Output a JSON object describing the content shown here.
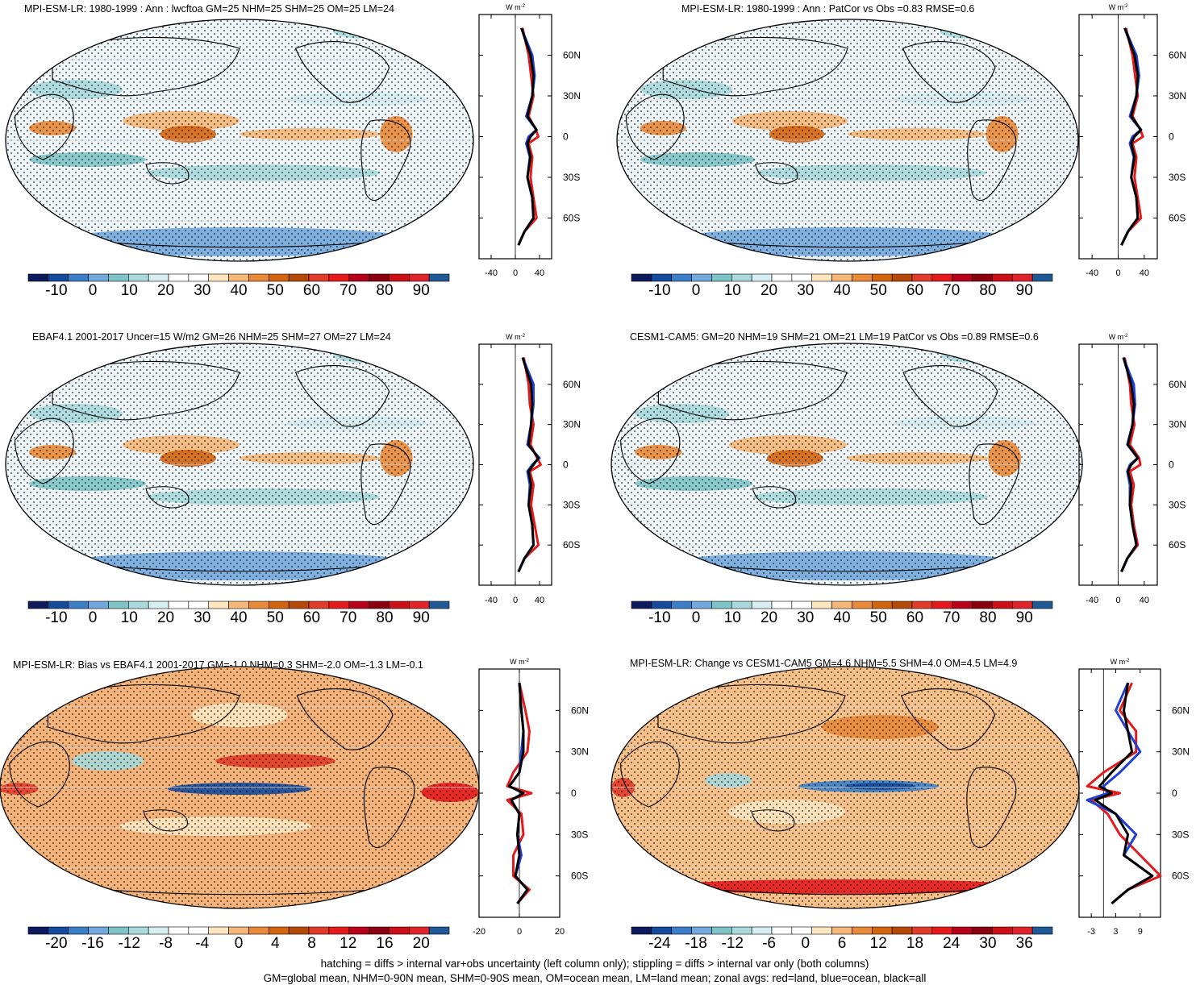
{
  "footer": {
    "line1": "hatching = diffs > internal var+obs uncertainty (left column only); stippling = diffs > internal var only (both columns)",
    "line2": "GM=global mean, NHM=0-90N mean, SHM=0-90S mean, OM=ocean mean, LM=land mean; zonal avgs: red=land, blue=ocean, black=all"
  },
  "colors": {
    "land": "#e41a1c",
    "ocean": "#1f3fd6",
    "all": "#000000",
    "palette": [
      "#0d1a5c",
      "#154a9c",
      "#3b7fc8",
      "#73a8dc",
      "#7ec4c6",
      "#a9d9dc",
      "#d6eef2",
      "#ffffff",
      "#ffffff",
      "#fde5c0",
      "#f5b87a",
      "#e88a38",
      "#d3650f",
      "#b54a08",
      "#e23b2a",
      "#e41a1c",
      "#b8001a",
      "#8a0010",
      "#cc1018",
      "#e0242c",
      "#1f5a96"
    ]
  },
  "panels": [
    {
      "title": "MPI-ESM-LR: 1980-1999 : Ann : lwcftoa GM=25 NHM=25 SHM=25 OM=25 LM=24",
      "colorbar_labels": [
        "-10",
        "0",
        "10",
        "20",
        "30",
        "40",
        "50",
        "60",
        "70",
        "80",
        "90"
      ],
      "zonal_unit": "W m",
      "zonal_unit_exp": "-2",
      "zonal_xticks": [
        "-40",
        "0",
        "40"
      ]
    },
    {
      "title": "MPI-ESM-LR: 1980-1999 : Ann : PatCor vs Obs =0.83 RMSE=0.6",
      "colorbar_labels": [
        "-10",
        "0",
        "10",
        "20",
        "30",
        "40",
        "50",
        "60",
        "70",
        "80",
        "90"
      ],
      "zonal_unit": "W m",
      "zonal_unit_exp": "-2",
      "zonal_xticks": [
        "-40",
        "0",
        "40"
      ]
    },
    {
      "title": "EBAF4.1 2001-2017 Uncer=15 W/m2 GM=26 NHM=25 SHM=27 OM=27 LM=24",
      "colorbar_labels": [
        "-10",
        "0",
        "10",
        "20",
        "30",
        "40",
        "50",
        "60",
        "70",
        "80",
        "90"
      ],
      "zonal_unit": "W m",
      "zonal_unit_exp": "-2",
      "zonal_xticks": [
        "-40",
        "0",
        "40"
      ]
    },
    {
      "title": "CESM1-CAM5: GM=20 NHM=19 SHM=21 OM=21 LM=19 PatCor vs Obs =0.89 RMSE=0.6",
      "colorbar_labels": [
        "-10",
        "0",
        "10",
        "20",
        "30",
        "40",
        "50",
        "60",
        "70",
        "80",
        "90"
      ],
      "zonal_unit": "W m",
      "zonal_unit_exp": "-2",
      "zonal_xticks": [
        "-40",
        "0",
        "40"
      ]
    },
    {
      "title": "MPI-ESM-LR: Bias vs EBAF4.1 2001-2017 GM=-1.0 NHM=0.3 SHM=-2.0 OM=-1.3 LM=-0.1",
      "colorbar_labels": [
        "-20",
        "-16",
        "-12",
        "-8",
        "-4",
        "0",
        "4",
        "8",
        "12",
        "16",
        "20"
      ],
      "zonal_unit": "W m",
      "zonal_unit_exp": "-2",
      "zonal_xticks": [
        "-20",
        "0",
        "20"
      ]
    },
    {
      "title": "MPI-ESM-LR: Change vs CESM1-CAM5 GM=4.6 NHM=5.5 SHM=4.0 OM=4.5 LM=4.9",
      "colorbar_labels": [
        "-24",
        "-18",
        "-12",
        "-6",
        "0",
        "6",
        "12",
        "18",
        "24",
        "30",
        "36"
      ],
      "zonal_unit": "W m",
      "zonal_unit_exp": "-2",
      "zonal_xticks": [
        "-3",
        "3",
        "9"
      ]
    }
  ],
  "chart_data": [
    {
      "type": "heatmap",
      "title": "MPI-ESM-LR: 1980-1999 : Ann : lwcftoa GM=25 NHM=25 SHM=25 OM=25 LM=24",
      "colorbar": {
        "min": -15,
        "max": 95,
        "labels": [
          -10,
          0,
          10,
          20,
          30,
          40,
          50,
          60,
          70,
          80,
          90
        ]
      },
      "zonal_mean": {
        "xlim": [
          -60,
          60
        ],
        "xticks": [
          -40,
          0,
          40
        ],
        "ylim": [
          -90,
          90
        ],
        "yticks": [
          "60N",
          "30N",
          "0",
          "30S",
          "60S"
        ],
        "lat": [
          80,
          60,
          45,
          30,
          15,
          5,
          0,
          -5,
          -15,
          -30,
          -45,
          -60,
          -70,
          -80
        ],
        "all": [
          10,
          25,
          30,
          28,
          20,
          35,
          25,
          20,
          25,
          20,
          28,
          30,
          15,
          5
        ],
        "land": [
          12,
          22,
          26,
          30,
          22,
          34,
          38,
          22,
          28,
          25,
          30,
          35,
          15,
          5
        ],
        "ocean": [
          10,
          28,
          32,
          28,
          18,
          35,
          22,
          18,
          24,
          20,
          28,
          30,
          15,
          5
        ]
      }
    },
    {
      "type": "heatmap",
      "title": "MPI-ESM-LR: 1980-1999 : Ann : PatCor vs Obs =0.83 RMSE=0.6",
      "colorbar": {
        "min": -15,
        "max": 95,
        "labels": [
          -10,
          0,
          10,
          20,
          30,
          40,
          50,
          60,
          70,
          80,
          90
        ]
      },
      "zonal_mean": {
        "xlim": [
          -60,
          60
        ],
        "xticks": [
          -40,
          0,
          40
        ],
        "ylim": [
          -90,
          90
        ],
        "yticks": [
          "60N",
          "30N",
          "0",
          "30S",
          "60S"
        ],
        "lat": [
          80,
          60,
          45,
          30,
          15,
          5,
          0,
          -5,
          -15,
          -30,
          -45,
          -60,
          -70,
          -80
        ],
        "all": [
          10,
          25,
          30,
          28,
          20,
          35,
          25,
          20,
          25,
          20,
          28,
          30,
          15,
          5
        ],
        "land": [
          12,
          22,
          26,
          30,
          22,
          34,
          38,
          22,
          28,
          25,
          30,
          35,
          15,
          5
        ],
        "ocean": [
          10,
          28,
          32,
          28,
          18,
          35,
          22,
          18,
          24,
          20,
          28,
          30,
          15,
          5
        ]
      }
    },
    {
      "type": "heatmap",
      "title": "EBAF4.1 2001-2017 Uncer=15 W/m2 GM=26 NHM=25 SHM=27 OM=27 LM=24",
      "colorbar": {
        "min": -15,
        "max": 95,
        "labels": [
          -10,
          0,
          10,
          20,
          30,
          40,
          50,
          60,
          70,
          80,
          90
        ]
      },
      "zonal_mean": {
        "xlim": [
          -60,
          60
        ],
        "xticks": [
          -40,
          0,
          40
        ],
        "ylim": [
          -90,
          90
        ],
        "yticks": [
          "60N",
          "30N",
          "0",
          "30S",
          "60S"
        ],
        "lat": [
          80,
          60,
          45,
          30,
          15,
          5,
          0,
          -5,
          -15,
          -30,
          -45,
          -60,
          -70,
          -80
        ],
        "all": [
          12,
          26,
          28,
          26,
          22,
          38,
          30,
          22,
          26,
          22,
          28,
          30,
          15,
          5
        ],
        "land": [
          14,
          22,
          24,
          30,
          25,
          36,
          42,
          24,
          30,
          26,
          32,
          38,
          15,
          5
        ],
        "ocean": [
          12,
          30,
          30,
          26,
          20,
          40,
          28,
          20,
          24,
          22,
          28,
          30,
          15,
          5
        ]
      }
    },
    {
      "type": "heatmap",
      "title": "CESM1-CAM5: GM=20 NHM=19 SHM=21 OM=21 LM=19 PatCor vs Obs =0.89 RMSE=0.6",
      "colorbar": {
        "min": -15,
        "max": 95,
        "labels": [
          -10,
          0,
          10,
          20,
          30,
          40,
          50,
          60,
          70,
          80,
          90
        ]
      },
      "zonal_mean": {
        "xlim": [
          -60,
          60
        ],
        "xticks": [
          -40,
          0,
          40
        ],
        "ylim": [
          -90,
          90
        ],
        "yticks": [
          "60N",
          "30N",
          "0",
          "30S",
          "60S"
        ],
        "lat": [
          80,
          60,
          45,
          30,
          15,
          5,
          0,
          -5,
          -15,
          -30,
          -45,
          -60,
          -70,
          -80
        ],
        "all": [
          8,
          20,
          24,
          22,
          15,
          30,
          20,
          15,
          20,
          18,
          22,
          28,
          14,
          5
        ],
        "land": [
          10,
          18,
          20,
          25,
          18,
          32,
          34,
          18,
          24,
          20,
          24,
          30,
          14,
          5
        ],
        "ocean": [
          8,
          24,
          26,
          22,
          14,
          30,
          18,
          14,
          18,
          18,
          22,
          28,
          14,
          5
        ]
      }
    },
    {
      "type": "heatmap",
      "title": "MPI-ESM-LR: Bias vs EBAF4.1 2001-2017 GM=-1.0 NHM=0.3 SHM=-2.0 OM=-1.3 LM=-0.1",
      "colorbar": {
        "min": -22,
        "max": 22,
        "labels": [
          -20,
          -16,
          -12,
          -8,
          -4,
          0,
          4,
          8,
          12,
          16,
          20
        ]
      },
      "zonal_mean": {
        "xlim": [
          -20,
          20
        ],
        "xticks": [
          -20,
          0,
          20
        ],
        "ylim": [
          -90,
          90
        ],
        "yticks": [
          "60N",
          "30N",
          "0",
          "30S",
          "60S"
        ],
        "lat": [
          80,
          60,
          45,
          30,
          15,
          5,
          0,
          -5,
          -15,
          -30,
          -45,
          -60,
          -70,
          -80
        ],
        "all": [
          0,
          1,
          2,
          2,
          0,
          -5,
          2,
          -4,
          0,
          -1,
          0,
          -2,
          4,
          -1
        ],
        "land": [
          0,
          3,
          5,
          4,
          -3,
          -6,
          6,
          -6,
          1,
          2,
          -3,
          -3,
          5,
          -1
        ],
        "ocean": [
          0,
          1,
          2,
          1,
          0,
          -5,
          2,
          -4,
          0,
          -1,
          1,
          -2,
          4,
          -1
        ]
      }
    },
    {
      "type": "heatmap",
      "title": "MPI-ESM-LR: Change vs CESM1-CAM5 GM=4.6 NHM=5.5 SHM=4.0 OM=4.5 LM=4.9",
      "colorbar": {
        "min": -27,
        "max": 39,
        "labels": [
          -24,
          -18,
          -12,
          -6,
          0,
          6,
          12,
          18,
          24,
          30,
          36
        ]
      },
      "zonal_mean": {
        "xlim": [
          -6,
          14
        ],
        "xticks": [
          -3,
          3,
          9
        ],
        "ylim": [
          -90,
          90
        ],
        "yticks": [
          "60N",
          "30N",
          "0",
          "30S",
          "60S"
        ],
        "lat": [
          80,
          60,
          45,
          30,
          15,
          5,
          0,
          -5,
          -15,
          -30,
          -45,
          -60,
          -70,
          -80
        ],
        "all": [
          6,
          5,
          6,
          7,
          2,
          -1,
          2,
          -2,
          3,
          6,
          5,
          12,
          6,
          2
        ],
        "land": [
          7,
          4,
          8,
          8,
          0,
          -4,
          4,
          -3,
          1,
          4,
          9,
          14,
          6,
          2
        ],
        "ocean": [
          6,
          3,
          6,
          9,
          4,
          0,
          1,
          -4,
          3,
          8,
          5,
          12,
          6,
          2
        ]
      }
    }
  ]
}
